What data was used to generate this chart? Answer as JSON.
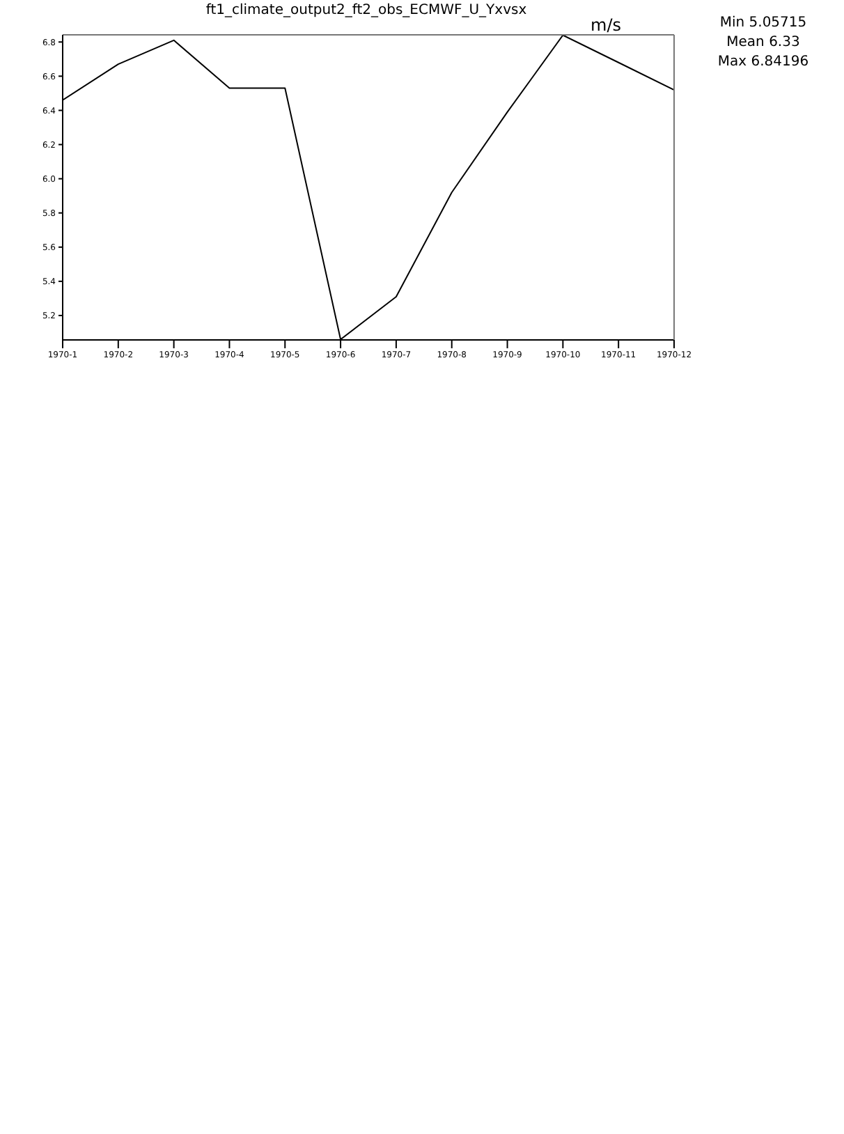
{
  "chart_data": {
    "type": "line",
    "title": "ft1_climate_output2_ft2_obs_ECMWF_U_Yxvsx",
    "ylabel": "m/s",
    "categories": [
      "1970-1",
      "1970-2",
      "1970-3",
      "1970-4",
      "1970-5",
      "1970-6",
      "1970-7",
      "1970-8",
      "1970-9",
      "1970-10",
      "1970-11",
      "1970-12"
    ],
    "series": [
      {
        "color": "#000000",
        "values": [
          6.46,
          6.67,
          6.81,
          6.53,
          6.53,
          5.06,
          5.31,
          5.92,
          6.39,
          6.84,
          6.68,
          6.52
        ]
      }
    ],
    "ylim": [
      5.05715,
      6.84196
    ],
    "yticks": [
      5.2,
      5.4,
      5.6,
      5.8,
      {
        "value": 6,
        "label": "6.0"
      },
      6.2,
      6.4,
      6.6,
      6.8
    ],
    "annotations": [
      "Min 5.05715",
      "Mean 6.33",
      "Max 6.84196"
    ]
  }
}
